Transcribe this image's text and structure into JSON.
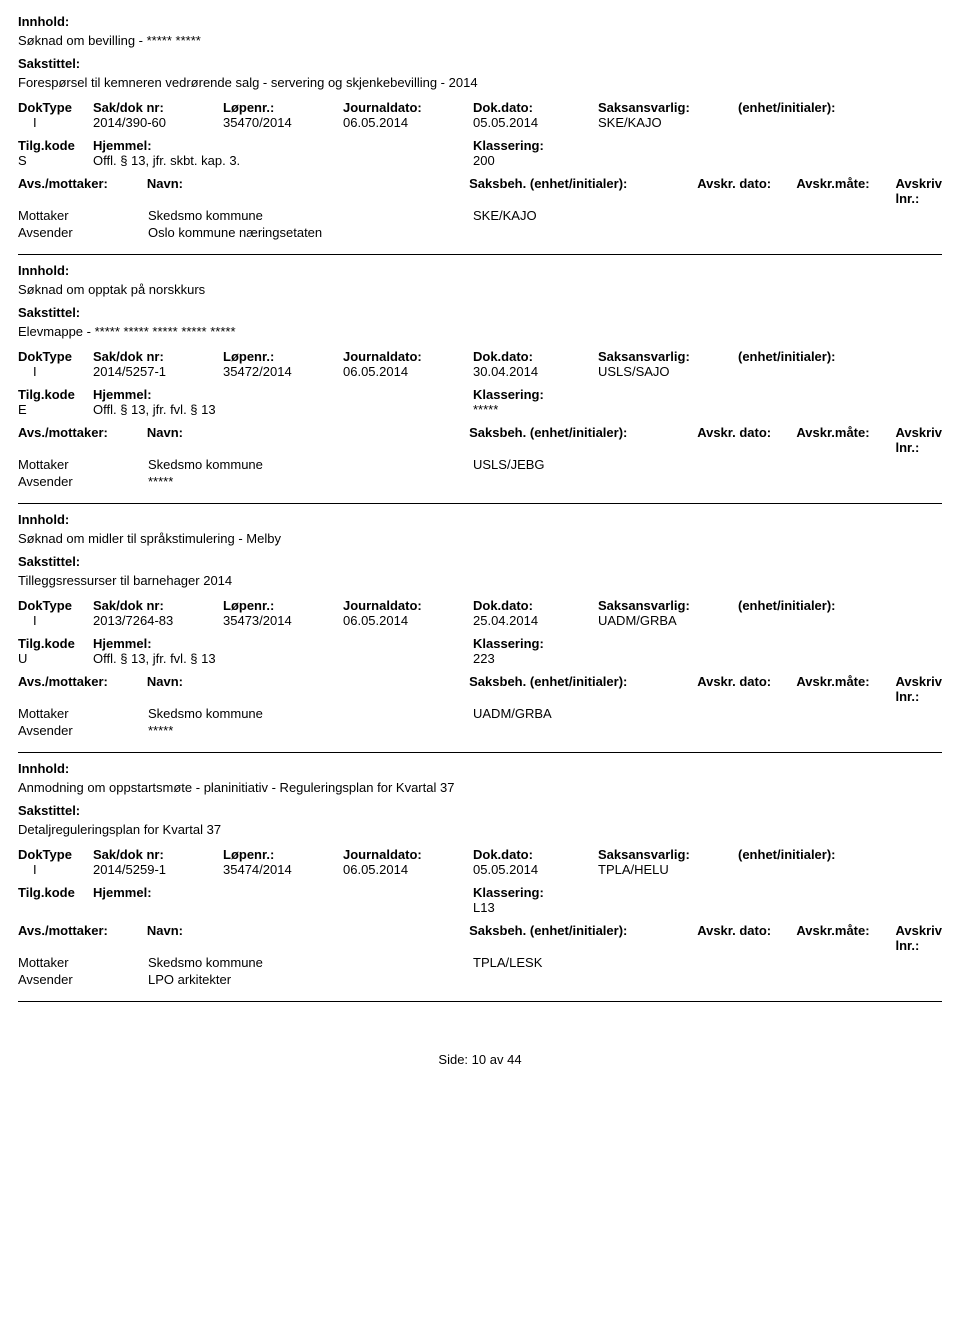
{
  "labels": {
    "innhold": "Innhold:",
    "sakstittel": "Sakstittel:",
    "doktype": "DokType",
    "sakdok": "Sak/dok nr:",
    "lopenr": "Løpenr.:",
    "journaldato": "Journaldato:",
    "dokdato": "Dok.dato:",
    "saksansvarlig": "Saksansvarlig:",
    "enhet": "(enhet/initialer):",
    "tilgkode": "Tilg.kode",
    "hjemmel": "Hjemmel:",
    "klassering": "Klassering:",
    "avsmottaker": "Avs./mottaker:",
    "navn": "Navn:",
    "saksbeh": "Saksbeh.",
    "saksbeh_enhet": "(enhet/initialer):",
    "avskrdato": "Avskr. dato:",
    "avskrmate": "Avskr.måte:",
    "avskrivlnr": "Avskriv lnr.:",
    "mottaker": "Mottaker",
    "avsender": "Avsender",
    "side": "Side:",
    "av": "av"
  },
  "footer": {
    "page": "10",
    "total": "44"
  },
  "records": [
    {
      "innhold": "Søknad om bevilling - ***** *****",
      "sakstittel": "Forespørsel til kemneren vedrørende salg - servering og skjenkebevilling - 2014",
      "doktype": "I",
      "sakdok": "2014/390-60",
      "lopenr": "35470/2014",
      "journaldato": "06.05.2014",
      "dokdato": "05.05.2014",
      "saksansvarlig": "SKE/KAJO",
      "tilgkode": "S",
      "hjemmel": "Offl. § 13, jfr. skbt. kap. 3.",
      "klassering": "200",
      "saksbeh": "SKE/KAJO",
      "mottaker_navn": "Skedsmo kommune",
      "avsender_navn": "Oslo kommune næringsetaten"
    },
    {
      "innhold": "Søknad om opptak på norskkurs",
      "sakstittel": "Elevmappe - ***** ***** ***** ***** *****",
      "doktype": "I",
      "sakdok": "2014/5257-1",
      "lopenr": "35472/2014",
      "journaldato": "06.05.2014",
      "dokdato": "30.04.2014",
      "saksansvarlig": "USLS/SAJO",
      "tilgkode": "E",
      "hjemmel": "Offl. § 13, jfr. fvl. § 13",
      "klassering": "*****",
      "saksbeh": "USLS/JEBG",
      "mottaker_navn": "Skedsmo kommune",
      "avsender_navn": "*****"
    },
    {
      "innhold": "Søknad om midler til språkstimulering - Melby",
      "sakstittel": "Tilleggsressurser til barnehager 2014",
      "doktype": "I",
      "sakdok": "2013/7264-83",
      "lopenr": "35473/2014",
      "journaldato": "06.05.2014",
      "dokdato": "25.04.2014",
      "saksansvarlig": "UADM/GRBA",
      "tilgkode": "U",
      "hjemmel": "Offl. § 13, jfr. fvl. § 13",
      "klassering": "223",
      "saksbeh": "UADM/GRBA",
      "mottaker_navn": "Skedsmo kommune",
      "avsender_navn": "*****"
    },
    {
      "innhold": "Anmodning om oppstartsmøte - planinitiativ - Reguleringsplan for Kvartal 37",
      "sakstittel": "Detaljreguleringsplan for Kvartal 37",
      "doktype": "I",
      "sakdok": "2014/5259-1",
      "lopenr": "35474/2014",
      "journaldato": "06.05.2014",
      "dokdato": "05.05.2014",
      "saksansvarlig": "TPLA/HELU",
      "tilgkode": "",
      "hjemmel": "",
      "klassering": "L13",
      "saksbeh": "TPLA/LESK",
      "mottaker_navn": "Skedsmo kommune",
      "avsender_navn": "LPO arkitekter"
    }
  ]
}
